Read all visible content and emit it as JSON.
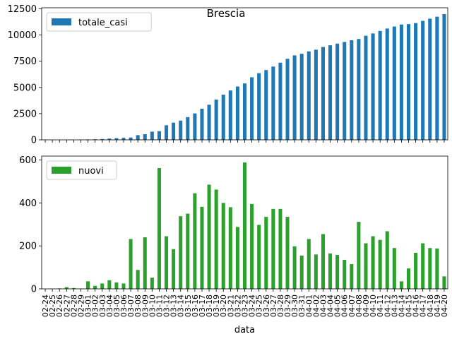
{
  "chart_data": {
    "type": "bar",
    "title": "Brescia",
    "xlabel": "data",
    "categories": [
      "02-24",
      "02-25",
      "02-26",
      "02-27",
      "02-28",
      "02-29",
      "03-01",
      "03-02",
      "03-03",
      "03-04",
      "03-05",
      "03-06",
      "03-07",
      "03-08",
      "03-09",
      "03-10",
      "03-11",
      "03-12",
      "03-13",
      "03-14",
      "03-15",
      "03-16",
      "03-17",
      "03-18",
      "03-19",
      "03-20",
      "03-21",
      "03-22",
      "03-23",
      "03-24",
      "03-25",
      "03-26",
      "03-27",
      "03-28",
      "03-29",
      "03-30",
      "03-31",
      "04-01",
      "04-02",
      "04-03",
      "04-04",
      "04-05",
      "04-06",
      "04-07",
      "04-08",
      "04-09",
      "04-10",
      "04-11",
      "04-12",
      "04-13",
      "04-14",
      "04-15",
      "04-16",
      "04-17",
      "04-18",
      "04-19",
      "04-20"
    ],
    "panels": [
      {
        "series": [
          {
            "name": "totale_casi",
            "color": "#1f77b4",
            "values": [
              0,
              0,
              0,
              3,
              5,
              6,
              40,
              55,
              80,
              120,
              160,
              190,
              220,
              450,
              540,
              780,
              830,
              1390,
              1640,
              1830,
              2170,
              2520,
              2970,
              3350,
              3840,
              4310,
              4710,
              5090,
              5380,
              5970,
              6360,
              6660,
              6990,
              7360,
              7730,
              8060,
              8210,
              8440,
              8600,
              8860,
              9020,
              9180,
              9340,
              9500,
              9620,
              9930,
              10150,
              10390,
              10620,
              10810,
              11000,
              11040,
              11140,
              11350,
              11560,
              11750,
              12000
            ]
          }
        ],
        "ylim": [
          0,
          12600
        ],
        "yticks": [
          0,
          2500,
          5000,
          7500,
          10000,
          12500
        ],
        "ytick_labels": [
          "0",
          "2500",
          "5000",
          "7500",
          "10000",
          "12500"
        ],
        "legend_position": "upper-left",
        "show_xtick_labels": false
      },
      {
        "series": [
          {
            "name": "nuovi",
            "color": "#2ca02c",
            "values": [
              0,
              0,
              2,
              8,
              4,
              1,
              35,
              14,
              25,
              40,
              30,
              25,
              232,
              88,
              240,
              52,
              562,
              245,
              185,
              338,
              350,
              445,
              382,
              485,
              462,
              400,
              380,
              288,
              588,
              395,
              298,
              335,
              372,
              372,
              335,
              198,
              155,
              232,
              160,
              255,
              165,
              158,
              135,
              115,
              312,
              212,
              245,
              228,
              268,
              190,
              35,
              95,
              168,
              212,
              190,
              188,
              58
            ]
          }
        ],
        "ylim": [
          0,
          618
        ],
        "yticks": [
          0,
          200,
          400,
          600
        ],
        "ytick_labels": [
          "0",
          "200",
          "400",
          "600"
        ],
        "legend_position": "upper-left",
        "show_xtick_labels": true
      }
    ],
    "grid": false
  }
}
